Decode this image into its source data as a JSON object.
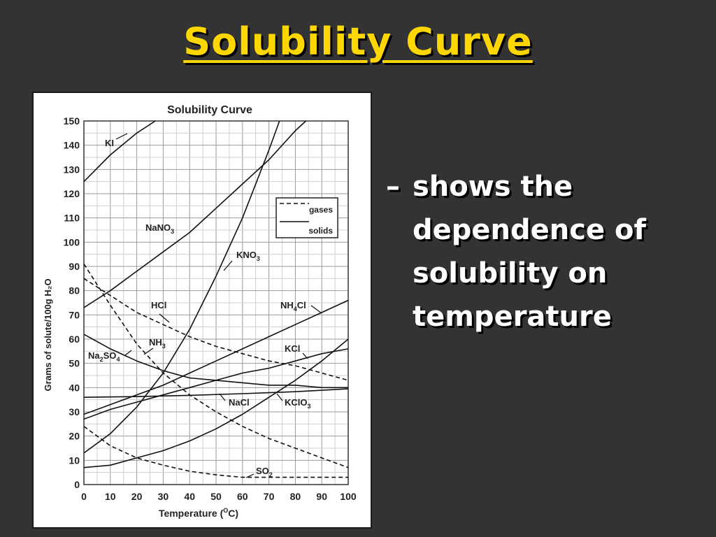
{
  "slide": {
    "title": "Solubility Curve",
    "bullet_marker": "–",
    "bullet_text": "shows the dependence of solubility on temperature",
    "colors": {
      "background": "#333333",
      "title": "#FFD700",
      "text": "#FFFFFF"
    }
  },
  "chart_data": {
    "type": "line",
    "title": "Solubility Curve",
    "xlabel": "Temperature (",
    "xlabel_sup": "O",
    "xlabel_end": "C)",
    "ylabel": "Grams of solute/100g H₂O",
    "xlim": [
      0,
      100
    ],
    "ylim": [
      0,
      150
    ],
    "xticks": [
      0,
      10,
      20,
      30,
      40,
      50,
      60,
      70,
      80,
      90,
      100
    ],
    "yticks": [
      0,
      10,
      20,
      30,
      40,
      50,
      60,
      70,
      80,
      90,
      100,
      110,
      120,
      130,
      140,
      150
    ],
    "grid": true,
    "legend": {
      "placement": "upper-right",
      "entries": [
        {
          "label": "gases",
          "style": "dashed"
        },
        {
          "label": "solids",
          "style": "solid"
        }
      ]
    },
    "series": [
      {
        "name": "KI",
        "style": "solid",
        "x": [
          0,
          10,
          20,
          27
        ],
        "y": [
          125,
          136,
          145,
          150
        ]
      },
      {
        "name": "NaNO3",
        "style": "solid",
        "x": [
          0,
          10,
          20,
          30,
          40,
          50,
          60,
          70,
          80,
          84
        ],
        "y": [
          73,
          80,
          88,
          96,
          104,
          114,
          124,
          134,
          146,
          150
        ]
      },
      {
        "name": "KNO3",
        "style": "solid",
        "x": [
          0,
          10,
          20,
          30,
          40,
          50,
          60,
          70,
          74
        ],
        "y": [
          13,
          21,
          32,
          46,
          64,
          86,
          110,
          138,
          150
        ]
      },
      {
        "name": "HCl",
        "style": "dashed",
        "x": [
          0,
          10,
          20,
          30,
          40,
          50,
          60,
          70,
          80,
          90,
          100
        ],
        "y": [
          85,
          78,
          71,
          66,
          61,
          57,
          54,
          51,
          49,
          46,
          43
        ]
      },
      {
        "name": "NH4Cl",
        "style": "solid",
        "x": [
          0,
          10,
          20,
          30,
          40,
          50,
          60,
          70,
          80,
          90,
          100
        ],
        "y": [
          29,
          33,
          37,
          41,
          46,
          51,
          56,
          61,
          66,
          71,
          76
        ]
      },
      {
        "name": "NH3",
        "style": "dashed",
        "x": [
          0,
          10,
          20,
          30,
          40,
          50,
          60,
          70,
          80,
          90,
          100
        ],
        "y": [
          91,
          74,
          58,
          46,
          37,
          30,
          24,
          19,
          15,
          11,
          7
        ]
      },
      {
        "name": "KCl",
        "style": "solid",
        "x": [
          0,
          10,
          20,
          30,
          40,
          50,
          60,
          70,
          80,
          90,
          100
        ],
        "y": [
          27,
          31,
          34,
          37,
          40,
          43,
          46,
          48,
          51,
          54,
          56
        ]
      },
      {
        "name": "Na2SO4",
        "style": "solid",
        "x": [
          0,
          10,
          20,
          30,
          40,
          50,
          60,
          70,
          80,
          90,
          100
        ],
        "y": [
          62,
          56,
          51,
          47,
          44,
          43,
          42,
          41,
          41,
          40,
          40
        ]
      },
      {
        "name": "NaCl",
        "style": "solid",
        "x": [
          0,
          20,
          40,
          60,
          80,
          100
        ],
        "y": [
          36,
          36.3,
          36.8,
          37.5,
          38.3,
          39.5
        ]
      },
      {
        "name": "KClO3",
        "style": "solid",
        "x": [
          0,
          10,
          20,
          30,
          40,
          50,
          60,
          70,
          80,
          90,
          100
        ],
        "y": [
          7,
          8,
          11,
          14,
          18,
          23,
          29,
          36,
          43,
          51,
          60
        ]
      },
      {
        "name": "SO2",
        "style": "dashed",
        "x": [
          0,
          10,
          20,
          30,
          40,
          50,
          60,
          70,
          80,
          90,
          100
        ],
        "y": [
          24,
          16,
          11,
          8,
          5.5,
          4,
          3,
          3,
          3,
          3,
          3
        ]
      }
    ],
    "annotations": [
      {
        "text": "KI",
        "sub": "",
        "sub_after": ""
      },
      {
        "text": "NaNO",
        "sub": "3",
        "sub_after": ""
      },
      {
        "text": "KNO",
        "sub": "3",
        "sub_after": ""
      },
      {
        "text": "HCl",
        "sub": "",
        "sub_after": ""
      },
      {
        "text": "NH",
        "sub": "4",
        "sub_after": "Cl"
      },
      {
        "text": "NH",
        "sub": "3",
        "sub_after": ""
      },
      {
        "text": "KCl",
        "sub": "",
        "sub_after": ""
      },
      {
        "text": "Na",
        "sub": "2",
        "sub_after": "SO",
        "sub2": "4"
      },
      {
        "text": "NaCl",
        "sub": "",
        "sub_after": ""
      },
      {
        "text": "KClO",
        "sub": "3",
        "sub_after": ""
      },
      {
        "text": "SO",
        "sub": "2",
        "sub_after": ""
      }
    ]
  }
}
